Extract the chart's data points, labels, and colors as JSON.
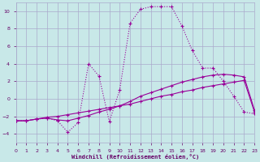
{
  "background_color": "#c8e8e8",
  "grid_color": "#aaaacc",
  "line_color": "#990099",
  "xlabel": "Windchill (Refroidissement éolien,°C)",
  "xlabel_color": "#660066",
  "tick_color": "#660066",
  "xlim": [
    0,
    23
  ],
  "ylim": [
    -5,
    11
  ],
  "yticks": [
    -4,
    -2,
    0,
    2,
    4,
    6,
    8,
    10
  ],
  "xticks": [
    0,
    1,
    2,
    3,
    4,
    5,
    6,
    7,
    8,
    9,
    10,
    11,
    12,
    13,
    14,
    15,
    16,
    17,
    18,
    19,
    20,
    21,
    22,
    23
  ],
  "line1_x": [
    0,
    1,
    2,
    3,
    4,
    5,
    6,
    7,
    8,
    9,
    10,
    11,
    12,
    13,
    14,
    15,
    16,
    17,
    18,
    19,
    20,
    21,
    22,
    23
  ],
  "line1_y": [
    -2.5,
    -2.5,
    -2.3,
    -2.2,
    -2.5,
    -3.8,
    -2.7,
    4.0,
    2.6,
    -2.6,
    1.0,
    8.6,
    10.2,
    10.5,
    10.5,
    10.5,
    8.3,
    5.5,
    3.5,
    3.5,
    2.0,
    0.3,
    -1.5,
    -1.7
  ],
  "line1_dotted": true,
  "line2_x": [
    0,
    1,
    2,
    3,
    4,
    5,
    6,
    7,
    8,
    9,
    10,
    11,
    12,
    13,
    14,
    15,
    16,
    17,
    18,
    19,
    20,
    21,
    22,
    23
  ],
  "line2_y": [
    -2.5,
    -2.5,
    -2.3,
    -2.2,
    -2.4,
    -2.5,
    -2.2,
    -1.9,
    -1.5,
    -1.2,
    -0.8,
    -0.3,
    0.3,
    0.7,
    1.1,
    1.5,
    1.9,
    2.2,
    2.5,
    2.7,
    2.8,
    2.7,
    2.5,
    -1.3
  ],
  "line2_dotted": false,
  "line3_x": [
    0,
    1,
    2,
    3,
    4,
    5,
    6,
    7,
    8,
    9,
    10,
    11,
    12,
    13,
    14,
    15,
    16,
    17,
    18,
    19,
    20,
    21,
    22,
    23
  ],
  "line3_y": [
    -2.5,
    -2.5,
    -2.3,
    -2.1,
    -2.0,
    -1.8,
    -1.6,
    -1.4,
    -1.2,
    -1.0,
    -0.8,
    -0.6,
    -0.3,
    0.0,
    0.3,
    0.5,
    0.8,
    1.0,
    1.3,
    1.5,
    1.7,
    1.9,
    2.1,
    -1.5
  ],
  "line3_dotted": false
}
